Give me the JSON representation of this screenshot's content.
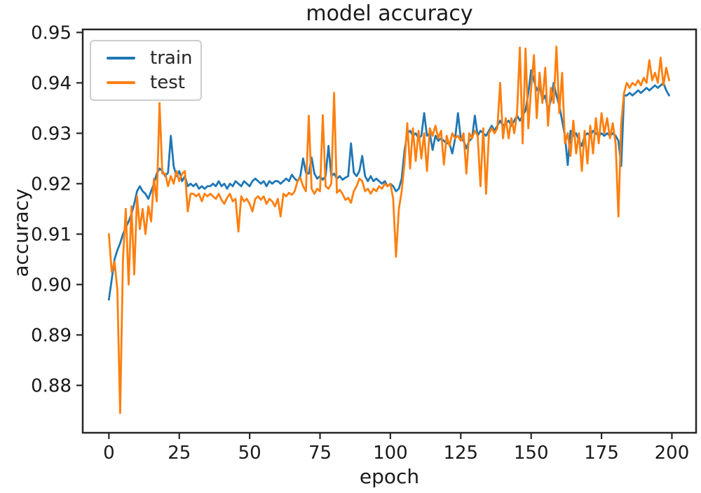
{
  "figure": {
    "title": "model accuracy",
    "xlabel": "epoch",
    "ylabel": "accuracy"
  },
  "axis_style": {
    "spine_color": "#262626",
    "tick_color": "#262626",
    "tick_label_color": "#1a1a1a",
    "tick_label_size": 26
  },
  "chart_data": {
    "type": "line",
    "title": "model accuracy",
    "xlabel": "epoch",
    "ylabel": "accuracy",
    "grid": false,
    "legend_position": "upper left",
    "xlim": [
      -9.3,
      208.6
    ],
    "ylim": [
      0.8706,
      0.9506
    ],
    "xticks": [
      0,
      25,
      50,
      75,
      100,
      125,
      150,
      175,
      200
    ],
    "yticks": [
      0.88,
      0.89,
      0.9,
      0.91,
      0.92,
      0.93,
      0.94,
      0.95
    ],
    "series": [
      {
        "name": "train",
        "color": "#1f77b4",
        "x_start": 0,
        "x_step": 1,
        "values": [
          0.897,
          0.901,
          0.905,
          0.9068,
          0.9082,
          0.91,
          0.9113,
          0.9125,
          0.914,
          0.916,
          0.9185,
          0.9195,
          0.9185,
          0.918,
          0.917,
          0.9185,
          0.92,
          0.922,
          0.923,
          0.9225,
          0.9215,
          0.9222,
          0.9295,
          0.9235,
          0.9215,
          0.9225,
          0.9205,
          0.9215,
          0.9195,
          0.92,
          0.9195,
          0.92,
          0.919,
          0.9195,
          0.919,
          0.9195,
          0.9195,
          0.92,
          0.9195,
          0.9205,
          0.9195,
          0.92,
          0.919,
          0.92,
          0.9195,
          0.9205,
          0.92,
          0.9195,
          0.9205,
          0.92,
          0.9195,
          0.9205,
          0.921,
          0.9205,
          0.92,
          0.9205,
          0.9195,
          0.9205,
          0.92,
          0.9205,
          0.9205,
          0.92,
          0.9205,
          0.921,
          0.9205,
          0.9218,
          0.921,
          0.9205,
          0.9215,
          0.925,
          0.9222,
          0.922,
          0.9252,
          0.922,
          0.921,
          0.9215,
          0.9208,
          0.9215,
          0.9275,
          0.9215,
          0.922,
          0.921,
          0.9215,
          0.9208,
          0.9212,
          0.9215,
          0.928,
          0.9222,
          0.9215,
          0.9225,
          0.9255,
          0.9215,
          0.9205,
          0.9215,
          0.9205,
          0.921,
          0.9205,
          0.92,
          0.9205,
          0.9195,
          0.92,
          0.9195,
          0.9185,
          0.919,
          0.921,
          0.9265,
          0.93,
          0.9305,
          0.9295,
          0.93,
          0.929,
          0.9295,
          0.934,
          0.9295,
          0.93,
          0.9267,
          0.9295,
          0.9285,
          0.929,
          0.9285,
          0.928,
          0.928,
          0.926,
          0.929,
          0.934,
          0.929,
          0.9285,
          0.927,
          0.9285,
          0.929,
          0.9335,
          0.9295,
          0.9305,
          0.93,
          0.9295,
          0.9305,
          0.9315,
          0.9305,
          0.9315,
          0.9325,
          0.9315,
          0.932,
          0.9325,
          0.9315,
          0.9325,
          0.9335,
          0.9325,
          0.9335,
          0.9345,
          0.938,
          0.9425,
          0.9405,
          0.9385,
          0.9395,
          0.9365,
          0.9375,
          0.9345,
          0.9365,
          0.94,
          0.9375,
          0.9355,
          0.9325,
          0.9295,
          0.9237,
          0.9305,
          0.9295,
          0.93,
          0.9285,
          0.9275,
          0.9295,
          0.93,
          0.9295,
          0.9305,
          0.93,
          0.9295,
          0.93,
          0.9295,
          0.93,
          0.9295,
          0.93,
          0.9295,
          0.9285,
          0.9235,
          0.9375,
          0.9375,
          0.938,
          0.9375,
          0.938,
          0.9385,
          0.938,
          0.9385,
          0.939,
          0.9385,
          0.939,
          0.9395,
          0.939,
          0.9395,
          0.94,
          0.9385,
          0.9375
        ]
      },
      {
        "name": "test",
        "color": "#ff7f0e",
        "x_start": 0,
        "x_step": 1,
        "values": [
          0.91,
          0.9025,
          0.9045,
          0.899,
          0.8745,
          0.905,
          0.915,
          0.9,
          0.9155,
          0.902,
          0.9175,
          0.911,
          0.915,
          0.91,
          0.9155,
          0.9125,
          0.921,
          0.9165,
          0.936,
          0.922,
          0.922,
          0.9195,
          0.9215,
          0.92,
          0.9225,
          0.9205,
          0.922,
          0.9225,
          0.9145,
          0.918,
          0.918,
          0.9175,
          0.918,
          0.9165,
          0.918,
          0.9175,
          0.918,
          0.9175,
          0.917,
          0.918,
          0.9168,
          0.916,
          0.9172,
          0.918,
          0.9165,
          0.917,
          0.9105,
          0.9175,
          0.9165,
          0.917,
          0.916,
          0.9145,
          0.917,
          0.9175,
          0.9168,
          0.9175,
          0.916,
          0.917,
          0.9165,
          0.9155,
          0.917,
          0.9135,
          0.918,
          0.9175,
          0.9182,
          0.9178,
          0.9185,
          0.9205,
          0.9212,
          0.9195,
          0.9185,
          0.9335,
          0.919,
          0.918,
          0.919,
          0.9185,
          0.9336,
          0.9195,
          0.919,
          0.92,
          0.938,
          0.9182,
          0.9188,
          0.918,
          0.9168,
          0.9172,
          0.9162,
          0.9185,
          0.9195,
          0.921,
          0.9205,
          0.9185,
          0.919,
          0.918,
          0.919,
          0.9185,
          0.9195,
          0.919,
          0.92,
          0.9195,
          0.92,
          0.917,
          0.9055,
          0.915,
          0.9185,
          0.924,
          0.932,
          0.923,
          0.931,
          0.9245,
          0.9305,
          0.925,
          0.93,
          0.9225,
          0.931,
          0.9295,
          0.9315,
          0.929,
          0.9305,
          0.9238,
          0.9295,
          0.9275,
          0.93,
          0.929,
          0.9295,
          0.9285,
          0.93,
          0.922,
          0.93,
          0.929,
          0.9305,
          0.9295,
          0.9195,
          0.931,
          0.918,
          0.93,
          0.931,
          0.93,
          0.931,
          0.94,
          0.929,
          0.933,
          0.929,
          0.933,
          0.93,
          0.934,
          0.947,
          0.928,
          0.9468,
          0.931,
          0.939,
          0.9455,
          0.933,
          0.942,
          0.936,
          0.943,
          0.9315,
          0.939,
          0.936,
          0.9472,
          0.934,
          0.942,
          0.928,
          0.93,
          0.9255,
          0.9325,
          0.926,
          0.93,
          0.9225,
          0.9305,
          0.924,
          0.9315,
          0.926,
          0.933,
          0.928,
          0.934,
          0.93,
          0.933,
          0.929,
          0.932,
          0.928,
          0.9135,
          0.932,
          0.938,
          0.94,
          0.939,
          0.94,
          0.9395,
          0.9405,
          0.9395,
          0.941,
          0.94,
          0.9445,
          0.9405,
          0.942,
          0.94,
          0.945,
          0.9395,
          0.943,
          0.9405
        ]
      }
    ]
  }
}
